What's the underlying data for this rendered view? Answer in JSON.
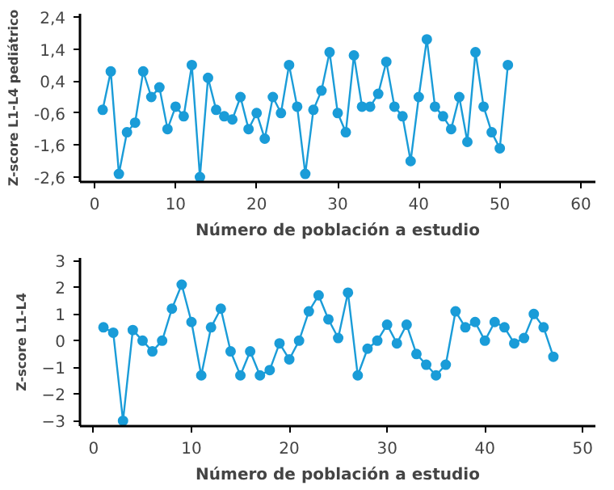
{
  "chart_data": [
    {
      "type": "line",
      "xlabel": "Número de población a estudio",
      "ylabel": "Z-score L1-L4 pediátrico",
      "x": [
        1,
        2,
        3,
        4,
        5,
        6,
        7,
        8,
        9,
        10,
        11,
        12,
        13,
        14,
        15,
        16,
        17,
        18,
        19,
        20,
        21,
        22,
        23,
        24,
        25,
        26,
        27,
        28,
        29,
        30,
        31,
        32,
        33,
        34,
        35,
        36,
        37,
        38,
        39,
        40,
        41,
        42,
        43,
        44,
        45,
        46,
        47,
        48,
        49,
        50,
        51
      ],
      "series": [
        {
          "color": "#1a9cd8",
          "values": [
            -0.5,
            0.7,
            -2.5,
            -1.2,
            -0.9,
            0.7,
            -0.1,
            0.2,
            -1.1,
            -0.4,
            -0.7,
            0.9,
            -2.6,
            0.5,
            -0.5,
            -0.7,
            -0.8,
            -0.1,
            -1.1,
            -0.6,
            -1.4,
            -0.1,
            -0.6,
            0.9,
            -0.4,
            -2.5,
            -0.5,
            0.1,
            1.3,
            -0.6,
            -1.2,
            1.2,
            -0.4,
            -0.4,
            0.0,
            1.0,
            -0.4,
            -0.7,
            -2.1,
            -0.1,
            1.7,
            -0.4,
            -0.7,
            -1.1,
            -0.1,
            -1.5,
            1.3,
            -0.4,
            -1.2,
            -1.7,
            0.9
          ]
        }
      ],
      "xlim": [
        -1.8,
        61.8
      ],
      "ylim": [
        -2.75,
        2.5
      ],
      "xticks": [
        0,
        10,
        20,
        30,
        40,
        50,
        60
      ],
      "yticks": [
        {
          "value": 2.4,
          "label": "2,4"
        },
        {
          "value": 1.4,
          "label": "1,4"
        },
        {
          "value": 0.4,
          "label": "0,4"
        },
        {
          "value": -0.6,
          "label": "-0,6"
        },
        {
          "value": -1.6,
          "label": "-1,6"
        },
        {
          "value": -2.6,
          "label": "-2,6"
        }
      ],
      "marker": "circle",
      "line_style": "solid",
      "grid": false
    },
    {
      "type": "line",
      "xlabel": "Número de población a estudio",
      "ylabel": "Z-score L1-L4",
      "x": [
        1,
        2,
        3,
        4,
        5,
        6,
        7,
        8,
        9,
        10,
        11,
        12,
        13,
        14,
        15,
        16,
        17,
        18,
        19,
        20,
        21,
        22,
        23,
        24,
        25,
        26,
        27,
        28,
        29,
        30,
        31,
        32,
        33,
        34,
        35,
        36,
        37,
        38,
        39,
        40,
        41,
        42,
        43,
        44,
        45,
        46,
        47
      ],
      "series": [
        {
          "color": "#1a9cd8",
          "values": [
            0.5,
            0.3,
            -3.0,
            0.4,
            0.0,
            -0.4,
            0.0,
            1.2,
            2.1,
            0.7,
            -1.3,
            0.5,
            1.2,
            -0.4,
            -1.3,
            -0.4,
            -1.3,
            -1.1,
            -0.1,
            -0.7,
            0.0,
            1.1,
            1.7,
            0.8,
            0.1,
            1.8,
            -1.3,
            -0.3,
            0.0,
            0.6,
            -0.1,
            0.6,
            -0.5,
            -0.9,
            -1.3,
            -0.9,
            1.1,
            0.5,
            0.7,
            0.0,
            0.7,
            0.5,
            -0.1,
            0.1,
            1.0,
            0.5,
            -0.6
          ]
        }
      ],
      "xlim": [
        -1.4,
        51.3
      ],
      "ylim": [
        -3.2,
        3.1
      ],
      "xticks": [
        0,
        10,
        20,
        30,
        40,
        50
      ],
      "yticks": [
        3,
        2,
        1,
        0,
        -1,
        -2,
        -3
      ],
      "marker": "circle",
      "line_style": "solid",
      "grid": false
    }
  ]
}
